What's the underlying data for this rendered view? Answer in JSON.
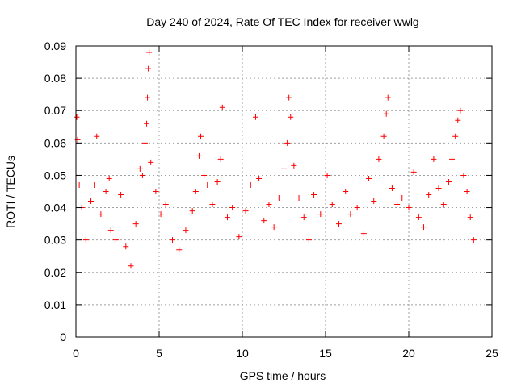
{
  "chart_data": {
    "type": "scatter",
    "title": "Day 240 of 2024, Rate Of TEC Index for receiver wwlg",
    "xlabel": "GPS time / hours",
    "ylabel": "ROTI / TECUs",
    "xlim": [
      0,
      25
    ],
    "ylim": [
      0,
      0.09
    ],
    "xticks": [
      0,
      5,
      10,
      15,
      20,
      25
    ],
    "xtick_labels": [
      "0",
      "5",
      "10",
      "15",
      "20",
      "25"
    ],
    "yticks": [
      0,
      0.01,
      0.02,
      0.03,
      0.04,
      0.05,
      0.06,
      0.07,
      0.08,
      0.09
    ],
    "ytick_labels": [
      "0",
      "0.01",
      "0.02",
      "0.03",
      "0.04",
      "0.05",
      "0.06",
      "0.07",
      "0.08",
      "0.09"
    ],
    "grid": true,
    "marker": "+",
    "series": [
      {
        "name": "ROTI",
        "color": "#ff0000",
        "x": [
          0.05,
          0.1,
          0.2,
          0.35,
          0.6,
          0.9,
          1.1,
          1.25,
          1.5,
          1.8,
          2.0,
          2.1,
          2.4,
          2.7,
          3.0,
          3.3,
          3.6,
          3.85,
          4.0,
          4.15,
          4.25,
          4.3,
          4.35,
          4.4,
          4.5,
          4.8,
          5.1,
          5.4,
          5.8,
          6.2,
          6.6,
          7.0,
          7.2,
          7.4,
          7.5,
          7.7,
          7.9,
          8.2,
          8.5,
          8.7,
          8.8,
          9.1,
          9.4,
          9.8,
          10.2,
          10.5,
          10.8,
          11.0,
          11.3,
          11.6,
          11.9,
          12.2,
          12.5,
          12.7,
          12.8,
          12.9,
          13.1,
          13.4,
          13.7,
          14.0,
          14.3,
          14.7,
          15.1,
          15.4,
          15.8,
          16.2,
          16.5,
          16.9,
          17.3,
          17.6,
          17.9,
          18.2,
          18.5,
          18.65,
          18.75,
          19.0,
          19.3,
          19.6,
          20.0,
          20.3,
          20.6,
          20.9,
          21.2,
          21.5,
          21.8,
          22.1,
          22.4,
          22.6,
          22.8,
          22.95,
          23.1,
          23.3,
          23.5,
          23.7,
          23.9
        ],
        "y": [
          0.068,
          0.061,
          0.047,
          0.04,
          0.03,
          0.042,
          0.047,
          0.062,
          0.038,
          0.045,
          0.049,
          0.033,
          0.03,
          0.044,
          0.028,
          0.022,
          0.035,
          0.052,
          0.05,
          0.06,
          0.066,
          0.074,
          0.083,
          0.088,
          0.054,
          0.045,
          0.038,
          0.041,
          0.03,
          0.027,
          0.033,
          0.039,
          0.045,
          0.056,
          0.062,
          0.05,
          0.047,
          0.041,
          0.048,
          0.055,
          0.071,
          0.037,
          0.04,
          0.031,
          0.039,
          0.047,
          0.068,
          0.049,
          0.036,
          0.041,
          0.034,
          0.043,
          0.052,
          0.06,
          0.074,
          0.068,
          0.053,
          0.043,
          0.037,
          0.03,
          0.044,
          0.038,
          0.05,
          0.041,
          0.035,
          0.045,
          0.038,
          0.04,
          0.032,
          0.049,
          0.042,
          0.055,
          0.062,
          0.069,
          0.074,
          0.046,
          0.041,
          0.043,
          0.04,
          0.051,
          0.037,
          0.034,
          0.044,
          0.055,
          0.046,
          0.041,
          0.048,
          0.055,
          0.062,
          0.067,
          0.07,
          0.05,
          0.045,
          0.037,
          0.03
        ]
      }
    ]
  }
}
